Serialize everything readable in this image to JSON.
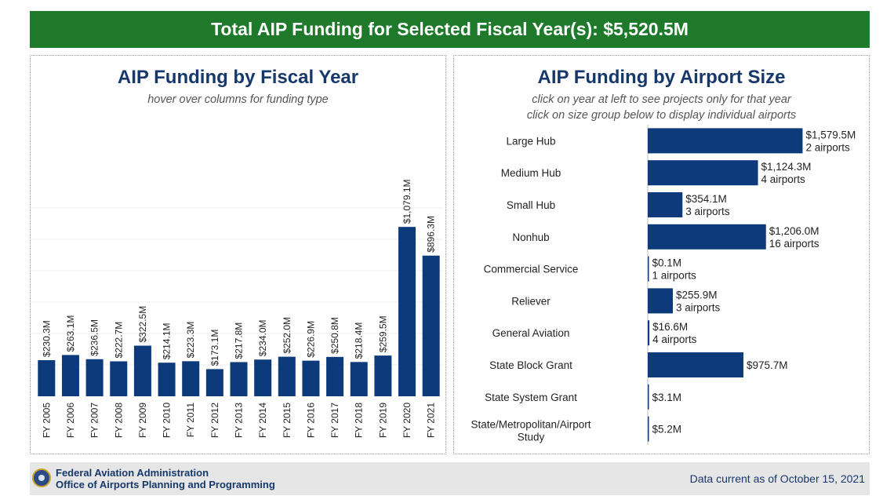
{
  "banner": {
    "title": "Total AIP Funding for Selected Fiscal Year(s): $5,520.5M"
  },
  "left_panel": {
    "title": "AIP Funding by Fiscal Year",
    "subtitle": "hover over columns for funding type"
  },
  "right_panel": {
    "title": "AIP Funding by Airport Size",
    "subtitle_1": "click on year at left to see projects only for that year",
    "subtitle_2": "click on size group below to display individual airports"
  },
  "footer": {
    "org_line_1": "Federal Aviation Administration",
    "org_line_2": "Office of Airports Planning and Programming",
    "data_current": "Data current as of October 15, 2021"
  },
  "colors": {
    "bar": "#0c3a7a",
    "banner": "#1e7a2a",
    "title": "#17386b"
  },
  "chart_data": [
    {
      "type": "bar",
      "title": "AIP Funding by Fiscal Year",
      "subtitle": "hover over columns for funding type",
      "categories": [
        "FY 2005",
        "FY 2006",
        "FY 2007",
        "FY 2008",
        "FY 2009",
        "FY 2010",
        "FY 2011",
        "FY 2012",
        "FY 2013",
        "FY 2014",
        "FY 2015",
        "FY 2016",
        "FY 2017",
        "FY 2018",
        "FY 2019",
        "FY 2020",
        "FY 2021"
      ],
      "values": [
        230.3,
        263.1,
        236.5,
        222.7,
        322.5,
        214.1,
        223.3,
        173.1,
        217.8,
        234.0,
        252.0,
        226.9,
        250.8,
        218.4,
        259.5,
        1079.1,
        896.3
      ],
      "labels": [
        "$230.3M",
        "$263.1M",
        "$236.5M",
        "$222.7M",
        "$322.5M",
        "$214.1M",
        "$223.3M",
        "$173.1M",
        "$217.8M",
        "$234.0M",
        "$252.0M",
        "$226.9M",
        "$250.8M",
        "$218.4M",
        "$259.5M",
        "$1,079.1M",
        "$896.3M"
      ],
      "ylim": [
        0,
        1400
      ],
      "grid": true
    },
    {
      "type": "bar",
      "orientation": "horizontal",
      "title": "AIP Funding by Airport Size",
      "categories": [
        "Large Hub",
        "Medium Hub",
        "Small Hub",
        "Nonhub",
        "Commercial Service",
        "Reliever",
        "General Aviation",
        "State Block Grant",
        "State System Grant",
        "State/Metropolitan/Airport Study"
      ],
      "values": [
        1579.5,
        1124.3,
        354.1,
        1206.0,
        0.1,
        255.9,
        16.6,
        975.7,
        3.1,
        5.2
      ],
      "labels": [
        "$1,579.5M",
        "$1,124.3M",
        "$354.1M",
        "$1,206.0M",
        "$0.1M",
        "$255.9M",
        "$16.6M",
        "$975.7M",
        "$3.1M",
        "$5.2M"
      ],
      "sublabels": [
        "2 airports",
        "4 airports",
        "3 airports",
        "16 airports",
        "1 airports",
        "3 airports",
        "4 airports",
        "",
        "",
        ""
      ],
      "xlim": [
        0,
        1600
      ]
    }
  ]
}
